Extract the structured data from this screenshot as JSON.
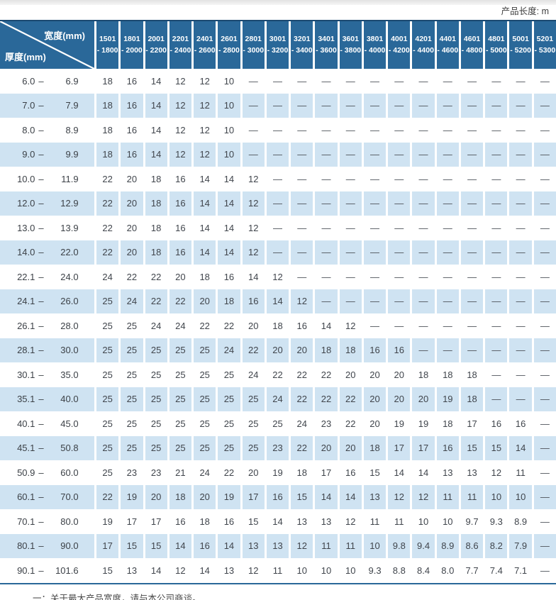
{
  "page": {
    "length_label": "产品长度: m",
    "footnote": "一：关于最大产品宽度，请与本公司商谈。"
  },
  "colors": {
    "header_blue": "#2a6899",
    "row_alt_blue": "#cfe3f2",
    "rule_blue": "#2a6899",
    "top_border_navy": "#1b4971"
  },
  "table": {
    "corner": {
      "width_label": "宽度(mm)",
      "thickness_label": "厚度(mm)"
    },
    "range_separator": "–",
    "empty_mark": "—",
    "width_columns": [
      {
        "line1": "1501",
        "line2": "- 1800"
      },
      {
        "line1": "1801",
        "line2": "- 2000"
      },
      {
        "line1": "2001",
        "line2": "- 2200"
      },
      {
        "line1": "2201",
        "line2": "- 2400"
      },
      {
        "line1": "2401",
        "line2": "- 2600"
      },
      {
        "line1": "2601",
        "line2": "- 2800"
      },
      {
        "line1": "2801",
        "line2": "- 3000"
      },
      {
        "line1": "3001",
        "line2": "- 3200"
      },
      {
        "line1": "3201",
        "line2": "- 3400"
      },
      {
        "line1": "3401",
        "line2": "- 3600"
      },
      {
        "line1": "3601",
        "line2": "- 3800"
      },
      {
        "line1": "3801",
        "line2": "- 4000"
      },
      {
        "line1": "4001",
        "line2": "- 4200"
      },
      {
        "line1": "4201",
        "line2": "- 4400"
      },
      {
        "line1": "4401",
        "line2": "- 4600"
      },
      {
        "line1": "4601",
        "line2": "- 4800"
      },
      {
        "line1": "4801",
        "line2": "- 5000"
      },
      {
        "line1": "5001",
        "line2": "- 5200"
      },
      {
        "line1": "5201",
        "line2": "- 5300"
      }
    ],
    "rows": [
      {
        "min": "6.0",
        "max": "6.9",
        "values": [
          "18",
          "16",
          "14",
          "12",
          "12",
          "10",
          "—",
          "—",
          "—",
          "—",
          "—",
          "—",
          "—",
          "—",
          "—",
          "—",
          "—",
          "—",
          "—"
        ]
      },
      {
        "min": "7.0",
        "max": "7.9",
        "values": [
          "18",
          "16",
          "14",
          "12",
          "12",
          "10",
          "—",
          "—",
          "—",
          "—",
          "—",
          "—",
          "—",
          "—",
          "—",
          "—",
          "—",
          "—",
          "—"
        ]
      },
      {
        "min": "8.0",
        "max": "8.9",
        "values": [
          "18",
          "16",
          "14",
          "12",
          "12",
          "10",
          "—",
          "—",
          "—",
          "—",
          "—",
          "—",
          "—",
          "—",
          "—",
          "—",
          "—",
          "—",
          "—"
        ]
      },
      {
        "min": "9.0",
        "max": "9.9",
        "values": [
          "18",
          "16",
          "14",
          "12",
          "12",
          "10",
          "—",
          "—",
          "—",
          "—",
          "—",
          "—",
          "—",
          "—",
          "—",
          "—",
          "—",
          "—",
          "—"
        ]
      },
      {
        "min": "10.0",
        "max": "11.9",
        "values": [
          "22",
          "20",
          "18",
          "16",
          "14",
          "14",
          "12",
          "—",
          "—",
          "—",
          "—",
          "—",
          "—",
          "—",
          "—",
          "—",
          "—",
          "—",
          "—"
        ]
      },
      {
        "min": "12.0",
        "max": "12.9",
        "values": [
          "22",
          "20",
          "18",
          "16",
          "14",
          "14",
          "12",
          "—",
          "—",
          "—",
          "—",
          "—",
          "—",
          "—",
          "—",
          "—",
          "—",
          "—",
          "—"
        ]
      },
      {
        "min": "13.0",
        "max": "13.9",
        "values": [
          "22",
          "20",
          "18",
          "16",
          "14",
          "14",
          "12",
          "—",
          "—",
          "—",
          "—",
          "—",
          "—",
          "—",
          "—",
          "—",
          "—",
          "—",
          "—"
        ]
      },
      {
        "min": "14.0",
        "max": "22.0",
        "values": [
          "22",
          "20",
          "18",
          "16",
          "14",
          "14",
          "12",
          "—",
          "—",
          "—",
          "—",
          "—",
          "—",
          "—",
          "—",
          "—",
          "—",
          "—",
          "—"
        ]
      },
      {
        "min": "22.1",
        "max": "24.0",
        "values": [
          "24",
          "22",
          "22",
          "20",
          "18",
          "16",
          "14",
          "12",
          "—",
          "—",
          "—",
          "—",
          "—",
          "—",
          "—",
          "—",
          "—",
          "—",
          "—"
        ]
      },
      {
        "min": "24.1",
        "max": "26.0",
        "values": [
          "25",
          "24",
          "22",
          "22",
          "20",
          "18",
          "16",
          "14",
          "12",
          "—",
          "—",
          "—",
          "—",
          "—",
          "—",
          "—",
          "—",
          "—",
          "—"
        ]
      },
      {
        "min": "26.1",
        "max": "28.0",
        "values": [
          "25",
          "25",
          "24",
          "24",
          "22",
          "22",
          "20",
          "18",
          "16",
          "14",
          "12",
          "—",
          "—",
          "—",
          "—",
          "—",
          "—",
          "—",
          "—"
        ]
      },
      {
        "min": "28.1",
        "max": "30.0",
        "values": [
          "25",
          "25",
          "25",
          "25",
          "25",
          "24",
          "22",
          "20",
          "20",
          "18",
          "18",
          "16",
          "16",
          "—",
          "—",
          "—",
          "—",
          "—",
          "—"
        ]
      },
      {
        "min": "30.1",
        "max": "35.0",
        "values": [
          "25",
          "25",
          "25",
          "25",
          "25",
          "25",
          "24",
          "22",
          "22",
          "22",
          "20",
          "20",
          "20",
          "18",
          "18",
          "18",
          "—",
          "—",
          "—"
        ]
      },
      {
        "min": "35.1",
        "max": "40.0",
        "values": [
          "25",
          "25",
          "25",
          "25",
          "25",
          "25",
          "25",
          "24",
          "22",
          "22",
          "22",
          "20",
          "20",
          "20",
          "19",
          "18",
          "—",
          "—",
          "—"
        ]
      },
      {
        "min": "40.1",
        "max": "45.0",
        "values": [
          "25",
          "25",
          "25",
          "25",
          "25",
          "25",
          "25",
          "25",
          "24",
          "23",
          "22",
          "20",
          "19",
          "19",
          "18",
          "17",
          "16",
          "16",
          "—"
        ]
      },
      {
        "min": "45.1",
        "max": "50.8",
        "values": [
          "25",
          "25",
          "25",
          "25",
          "25",
          "25",
          "25",
          "23",
          "22",
          "20",
          "20",
          "18",
          "17",
          "17",
          "16",
          "15",
          "15",
          "14",
          "—"
        ]
      },
      {
        "min": "50.9",
        "max": "60.0",
        "values": [
          "25",
          "23",
          "23",
          "21",
          "24",
          "22",
          "20",
          "19",
          "18",
          "17",
          "16",
          "15",
          "14",
          "14",
          "13",
          "13",
          "12",
          "11",
          "—"
        ]
      },
      {
        "min": "60.1",
        "max": "70.0",
        "values": [
          "22",
          "19",
          "20",
          "18",
          "20",
          "19",
          "17",
          "16",
          "15",
          "14",
          "14",
          "13",
          "12",
          "12",
          "11",
          "11",
          "10",
          "10",
          "—"
        ]
      },
      {
        "min": "70.1",
        "max": "80.0",
        "values": [
          "19",
          "17",
          "17",
          "16",
          "18",
          "16",
          "15",
          "14",
          "13",
          "13",
          "12",
          "11",
          "11",
          "10",
          "10",
          "9.7",
          "9.3",
          "8.9",
          "—"
        ]
      },
      {
        "min": "80.1",
        "max": "90.0",
        "values": [
          "17",
          "15",
          "15",
          "14",
          "16",
          "14",
          "13",
          "13",
          "12",
          "11",
          "11",
          "10",
          "9.8",
          "9.4",
          "8.9",
          "8.6",
          "8.2",
          "7.9",
          "—"
        ]
      },
      {
        "min": "90.1",
        "max": "101.6",
        "values": [
          "15",
          "13",
          "14",
          "12",
          "14",
          "13",
          "12",
          "11",
          "10",
          "10",
          "10",
          "9.3",
          "8.8",
          "8.4",
          "8.0",
          "7.7",
          "7.4",
          "7.1",
          "—"
        ]
      }
    ]
  }
}
